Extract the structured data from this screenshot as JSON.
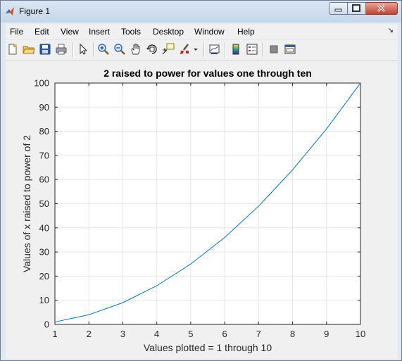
{
  "window": {
    "title": "Figure 1"
  },
  "menubar": {
    "items": [
      "File",
      "Edit",
      "View",
      "Insert",
      "Tools",
      "Desktop",
      "Window",
      "Help"
    ],
    "overflow_icon": "menu-overflow-arrow"
  },
  "toolbar": {
    "buttons": [
      "new-figure-icon",
      "open-file-icon",
      "save-icon",
      "print-icon",
      "edit-plot-arrow-icon",
      "zoom-in-icon",
      "zoom-out-icon",
      "pan-hand-icon",
      "rotate-3d-icon",
      "data-cursor-icon",
      "brush-icon",
      "brush-dropdown-icon",
      "link-plot-icon",
      "insert-colorbar-icon",
      "insert-legend-icon",
      "hide-plot-tools-icon",
      "show-plot-tools-icon"
    ]
  },
  "colors": {
    "line": "#0072bd",
    "axes_background": "#ffffff",
    "figure_background": "#f0f0f0",
    "grid": "#e6e6e6"
  },
  "chart_data": {
    "type": "line",
    "title": "2 raised to power for values one through ten",
    "xlabel": "Values plotted = 1 through 10",
    "ylabel": "Values of x raised to power of 2",
    "x": [
      1,
      2,
      3,
      4,
      5,
      6,
      7,
      8,
      9,
      10
    ],
    "series": [
      {
        "values": [
          1,
          4,
          9,
          16,
          25,
          36,
          49,
          64,
          81,
          100
        ]
      }
    ],
    "xlim": [
      1,
      10
    ],
    "ylim": [
      0,
      100
    ],
    "xticks": [
      1,
      2,
      3,
      4,
      5,
      6,
      7,
      8,
      9,
      10
    ],
    "yticks": [
      0,
      10,
      20,
      30,
      40,
      50,
      60,
      70,
      80,
      90,
      100
    ],
    "grid": true,
    "legend": "none"
  }
}
